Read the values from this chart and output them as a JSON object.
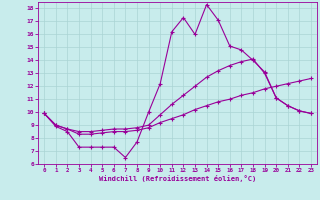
{
  "xlabel": "Windchill (Refroidissement éolien,°C)",
  "background_color": "#c8ecec",
  "line_color": "#990099",
  "grid_color": "#aad4d4",
  "xlim": [
    -0.5,
    23.5
  ],
  "ylim": [
    6,
    18.5
  ],
  "yticks": [
    6,
    7,
    8,
    9,
    10,
    11,
    12,
    13,
    14,
    15,
    16,
    17,
    18
  ],
  "xticks": [
    0,
    1,
    2,
    3,
    4,
    5,
    6,
    7,
    8,
    9,
    10,
    11,
    12,
    13,
    14,
    15,
    16,
    17,
    18,
    19,
    20,
    21,
    22,
    23
  ],
  "line1_x": [
    0,
    1,
    2,
    3,
    4,
    5,
    6,
    7,
    8,
    9,
    10,
    11,
    12,
    13,
    14,
    15,
    16,
    17,
    18,
    19,
    20,
    21,
    22,
    23
  ],
  "line1_y": [
    9.9,
    8.9,
    8.5,
    7.3,
    7.3,
    7.3,
    7.3,
    6.5,
    7.7,
    10.0,
    12.2,
    16.2,
    17.3,
    16.0,
    18.3,
    17.1,
    15.1,
    14.8,
    14.0,
    13.1,
    11.1,
    10.5,
    10.1,
    9.9
  ],
  "line2_x": [
    0,
    1,
    2,
    3,
    4,
    5,
    6,
    7,
    8,
    9,
    10,
    11,
    12,
    13,
    14,
    15,
    16,
    17,
    18,
    19,
    20,
    21,
    22,
    23
  ],
  "line2_y": [
    9.9,
    9.0,
    8.7,
    8.3,
    8.3,
    8.4,
    8.5,
    8.5,
    8.6,
    8.8,
    9.2,
    9.5,
    9.8,
    10.2,
    10.5,
    10.8,
    11.0,
    11.3,
    11.5,
    11.8,
    12.0,
    12.2,
    12.4,
    12.6
  ],
  "line3_x": [
    0,
    1,
    2,
    3,
    4,
    5,
    6,
    7,
    8,
    9,
    10,
    11,
    12,
    13,
    14,
    15,
    16,
    17,
    18,
    19,
    20,
    21,
    22,
    23
  ],
  "line3_y": [
    9.9,
    9.0,
    8.7,
    8.5,
    8.5,
    8.6,
    8.7,
    8.7,
    8.8,
    9.0,
    9.8,
    10.6,
    11.3,
    12.0,
    12.7,
    13.2,
    13.6,
    13.9,
    14.1,
    13.0,
    11.1,
    10.5,
    10.1,
    9.9
  ]
}
